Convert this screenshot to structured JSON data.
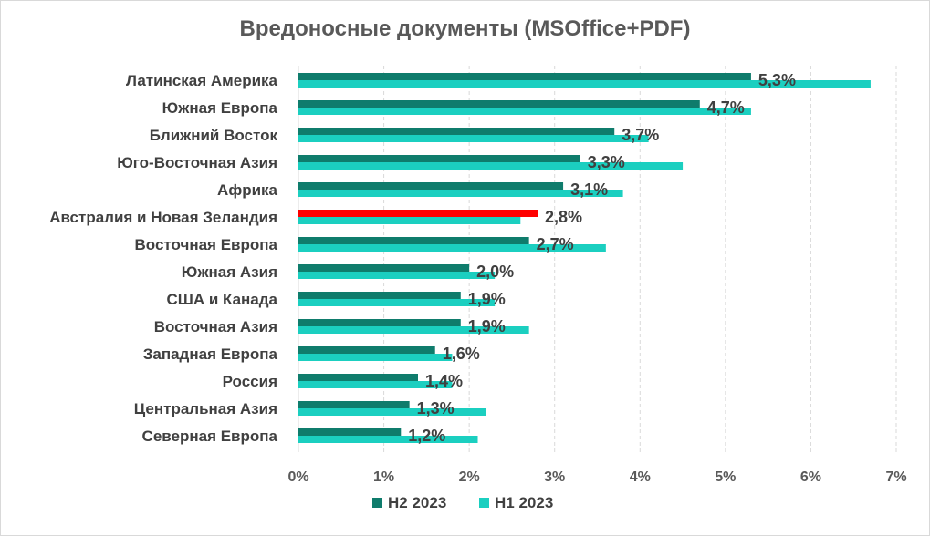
{
  "chart_data": {
    "type": "bar",
    "orientation": "horizontal",
    "title": "Вредоносные документы (MSOffice+PDF)",
    "categories": [
      "Латинская Америка",
      "Южная Европа",
      "Ближний Восток",
      "Юго-Восточная Азия",
      "Африка",
      "Австралия и Новая Зеландия",
      "Восточная Европа",
      "Южная Азия",
      "США и Канада",
      "Восточная Азия",
      "Западная Европа",
      "Россия",
      "Центральная Азия",
      "Северная Европа"
    ],
    "series": [
      {
        "name": "H2 2023",
        "values": [
          5.3,
          4.7,
          3.7,
          3.3,
          3.1,
          2.8,
          2.7,
          2.0,
          1.9,
          1.9,
          1.6,
          1.4,
          1.3,
          1.2
        ],
        "color": "#0f7c6c"
      },
      {
        "name": "H1 2023",
        "values": [
          6.7,
          5.3,
          4.1,
          4.5,
          3.8,
          2.6,
          3.6,
          2.3,
          2.3,
          2.7,
          1.8,
          1.8,
          2.2,
          2.1
        ],
        "color": "#1bcfc0"
      }
    ],
    "data_labels": [
      "5,3%",
      "4,7%",
      "3,7%",
      "3,3%",
      "3,1%",
      "2,8%",
      "2,7%",
      "2,0%",
      "1,9%",
      "1,9%",
      "1,6%",
      "1,4%",
      "1,3%",
      "1,2%"
    ],
    "highlight": {
      "category": "Австралия и Новая Зеландия",
      "series": "H2 2023",
      "color": "#ff0000"
    },
    "xlim": [
      0,
      7
    ],
    "xticks": [
      "0%",
      "1%",
      "2%",
      "3%",
      "4%",
      "5%",
      "6%",
      "7%"
    ],
    "grid": "vertical dashed",
    "legend_position": "bottom"
  }
}
